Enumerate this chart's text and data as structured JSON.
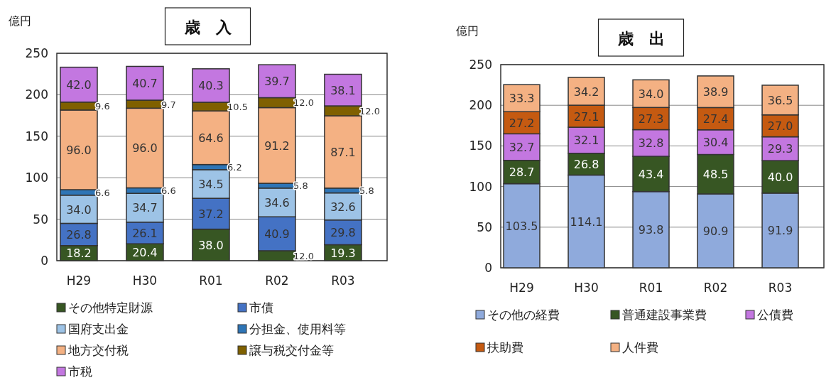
{
  "chart_data": [
    {
      "type": "bar",
      "title": "歳　入",
      "ylabel": "億円",
      "categories": [
        "H29",
        "H30",
        "R01",
        "R02",
        "R03"
      ],
      "stacked": true,
      "grid": "y",
      "legend": "bottom",
      "ylim": [
        0,
        250
      ],
      "yticks": [
        0,
        50,
        100,
        150,
        200,
        250
      ],
      "series": [
        {
          "name": "その他特定財源",
          "color": "#375623",
          "values": [
            18.2,
            20.4,
            38.0,
            12.0,
            19.3
          ],
          "value_labels": [
            "18.2",
            "20.4",
            "38.0",
            "12.0",
            "19.3"
          ]
        },
        {
          "name": "市債",
          "color": "#4472c4",
          "values": [
            26.8,
            26.1,
            37.2,
            40.9,
            29.8
          ],
          "value_labels": [
            "26.8",
            "26.1",
            "37.2",
            "40.9",
            "29.8"
          ]
        },
        {
          "name": "国府支出金",
          "color": "#9dc3e6",
          "values": [
            34.0,
            34.7,
            34.5,
            34.6,
            32.6
          ],
          "value_labels": [
            "34.0",
            "34.7",
            "34.5",
            "34.6",
            "32.6"
          ]
        },
        {
          "name": "分担金、使用料等",
          "color": "#2e75b6",
          "values": [
            6.6,
            6.6,
            6.2,
            5.8,
            5.8
          ],
          "value_labels": [
            "6.6",
            "6.6",
            "6.2",
            "5.8",
            "5.8"
          ]
        },
        {
          "name": "地方交付税",
          "color": "#f4b183",
          "values": [
            96.0,
            96.0,
            64.6,
            91.2,
            87.1
          ],
          "value_labels": [
            "96.0",
            "96.0",
            "64.6",
            "91.2",
            "87.1"
          ]
        },
        {
          "name": "譲与税交付金等",
          "color": "#7f6000",
          "values": [
            9.6,
            9.7,
            10.5,
            12.0,
            12.0
          ],
          "value_labels": [
            "9.6",
            "9.7",
            "10.5",
            "12.0",
            "12.0"
          ]
        },
        {
          "name": "市税",
          "color": "#c377e0",
          "values": [
            42.0,
            40.7,
            40.3,
            39.7,
            38.1
          ],
          "value_labels": [
            "42.0",
            "40.7",
            "40.3",
            "39.7",
            "38.1"
          ]
        }
      ]
    },
    {
      "type": "bar",
      "title": "歳　出",
      "ylabel": "億円",
      "categories": [
        "H29",
        "H30",
        "R01",
        "R02",
        "R03"
      ],
      "stacked": true,
      "grid": "y",
      "legend": "bottom",
      "ylim": [
        0,
        250
      ],
      "yticks": [
        0,
        50,
        100,
        150,
        200,
        250
      ],
      "series": [
        {
          "name": "その他の経費",
          "color": "#8faadc",
          "values": [
            103.5,
            114.1,
            93.8,
            90.9,
            91.9
          ],
          "value_labels": [
            "103.5",
            "114.1",
            "93.8",
            "90.9",
            "91.9"
          ]
        },
        {
          "name": "普通建設事業費",
          "color": "#375623",
          "values": [
            28.7,
            26.8,
            43.4,
            48.5,
            40.0
          ],
          "value_labels": [
            "28.7",
            "26.8",
            "43.4",
            "48.5",
            "40.0"
          ]
        },
        {
          "name": "公債費",
          "color": "#c377e0",
          "values": [
            32.7,
            32.1,
            32.8,
            30.4,
            29.3
          ],
          "value_labels": [
            "32.7",
            "32.1",
            "32.8",
            "30.4",
            "29.3"
          ]
        },
        {
          "name": "扶助費",
          "color": "#c55a11",
          "values": [
            27.2,
            27.1,
            27.3,
            27.4,
            27.0
          ],
          "value_labels": [
            "27.2",
            "27.1",
            "27.3",
            "27.4",
            "27.0"
          ]
        },
        {
          "name": "人件費",
          "color": "#f4b183",
          "values": [
            33.3,
            34.2,
            34.0,
            38.9,
            36.5
          ],
          "value_labels": [
            "33.3",
            "34.2",
            "34.0",
            "38.9",
            "36.5"
          ]
        }
      ]
    }
  ]
}
